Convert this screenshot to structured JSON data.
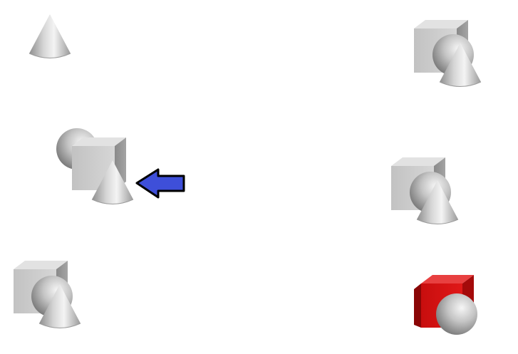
{
  "scene": {
    "background": "#ffffff",
    "groups": [
      {
        "name": "cone-only",
        "shapes": [
          "cone"
        ],
        "highlighted": false,
        "pointed_at": false,
        "cube_color": null
      },
      {
        "name": "cube-sphere-cone-top-right",
        "shapes": [
          "cube",
          "sphere",
          "cone"
        ],
        "highlighted": false,
        "pointed_at": false,
        "cube_color": "#c8c8c8"
      },
      {
        "name": "sphere-cube-cone-middle-left",
        "shapes": [
          "sphere",
          "cube",
          "cone"
        ],
        "highlighted": false,
        "pointed_at": true,
        "cube_color": "#c8c8c8"
      },
      {
        "name": "cube-sphere-cone-middle-right",
        "shapes": [
          "cube",
          "sphere",
          "cone"
        ],
        "highlighted": false,
        "pointed_at": false,
        "cube_color": "#c8c8c8"
      },
      {
        "name": "cube-sphere-cone-bottom-left",
        "shapes": [
          "cube",
          "sphere",
          "cone"
        ],
        "highlighted": false,
        "pointed_at": false,
        "cube_color": "#c8c8c8"
      },
      {
        "name": "red-cube-sphere-bottom-right",
        "shapes": [
          "cube",
          "sphere"
        ],
        "highlighted": true,
        "pointed_at": false,
        "cube_color": "#c81010"
      }
    ],
    "arrow": {
      "color": "#3e4fd9",
      "outline": "#000000",
      "direction": "left",
      "target": "sphere-cube-cone-middle-left"
    }
  }
}
